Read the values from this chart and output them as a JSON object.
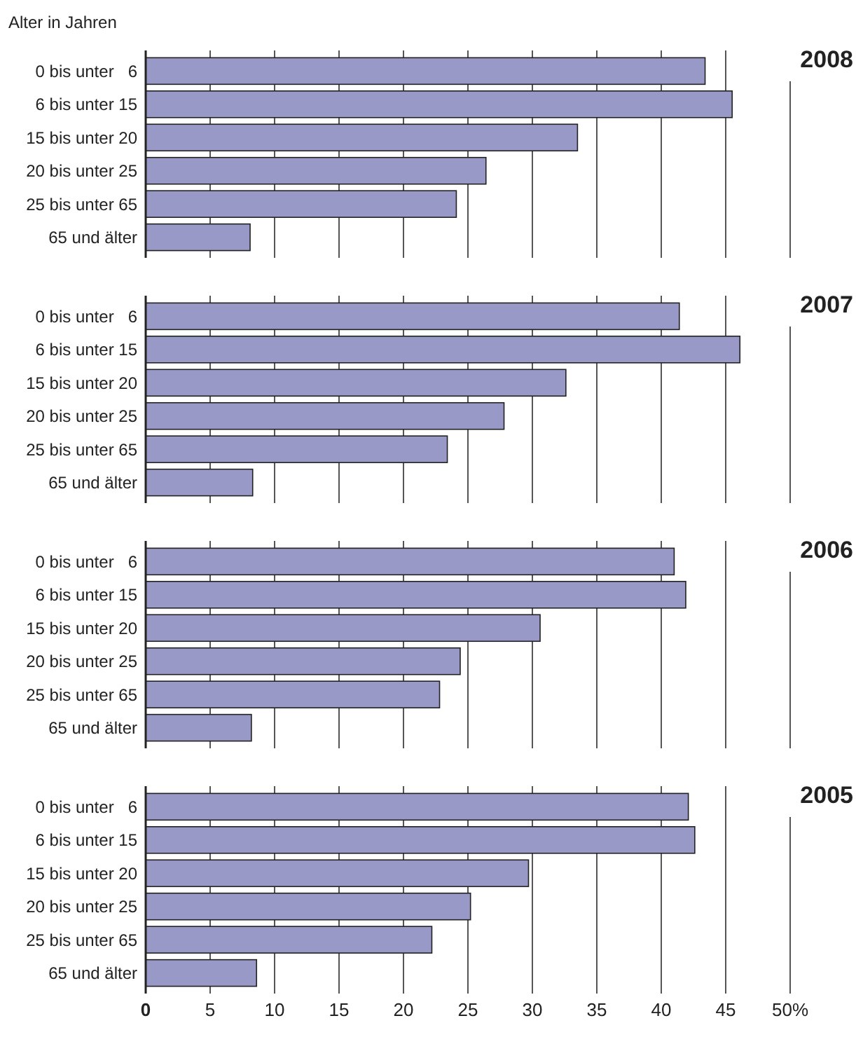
{
  "chart_data": [
    {
      "type": "bar",
      "orientation": "horizontal",
      "title": "2008",
      "ylabel": "Alter in Jahren",
      "categories": [
        "0 bis unter   6",
        "6 bis unter 15",
        "15 bis unter 20",
        "20 bis unter 25",
        "25 bis unter 65",
        "65 und älter"
      ],
      "values": [
        43.4,
        45.5,
        33.5,
        26.4,
        24.1,
        8.1
      ],
      "color": "#9999c8",
      "xlim": [
        0,
        50
      ],
      "xticks": [
        0,
        5,
        10,
        15,
        20,
        25,
        30,
        35,
        40,
        45,
        50
      ],
      "grid": "x",
      "tick_labels": "y"
    },
    {
      "type": "bar",
      "orientation": "horizontal",
      "title": "2007",
      "categories": [
        "0 bis unter   6",
        "6 bis unter 15",
        "15 bis unter 20",
        "20 bis unter 25",
        "25 bis unter 65",
        "65 und älter"
      ],
      "values": [
        41.4,
        46.1,
        32.6,
        27.8,
        23.4,
        8.3
      ],
      "color": "#9999c8",
      "xlim": [
        0,
        50
      ],
      "xticks": [
        0,
        5,
        10,
        15,
        20,
        25,
        30,
        35,
        40,
        45,
        50
      ],
      "grid": "x",
      "tick_labels": "y"
    },
    {
      "type": "bar",
      "orientation": "horizontal",
      "title": "2006",
      "categories": [
        "0 bis unter   6",
        "6 bis unter 15",
        "15 bis unter 20",
        "20 bis unter 25",
        "25 bis unter 65",
        "65 und älter"
      ],
      "values": [
        41.0,
        41.9,
        30.6,
        24.4,
        22.8,
        8.2
      ],
      "color": "#9999c8",
      "xlim": [
        0,
        50
      ],
      "xticks": [
        0,
        5,
        10,
        15,
        20,
        25,
        30,
        35,
        40,
        45,
        50
      ],
      "grid": "x",
      "tick_labels": "y"
    },
    {
      "type": "bar",
      "orientation": "horizontal",
      "title": "2005",
      "categories": [
        "0 bis unter   6",
        "6 bis unter 15",
        "15 bis unter 20",
        "20 bis unter 25",
        "25 bis unter 65",
        "65 und älter"
      ],
      "values": [
        42.1,
        42.6,
        29.7,
        25.2,
        22.2,
        8.6
      ],
      "color": "#9999c8",
      "xlim": [
        0,
        50
      ],
      "xticks": [
        0,
        5,
        10,
        15,
        20,
        25,
        30,
        35,
        40,
        45,
        {
          "value": 50,
          "label": "50%"
        }
      ],
      "grid": "x"
    }
  ]
}
